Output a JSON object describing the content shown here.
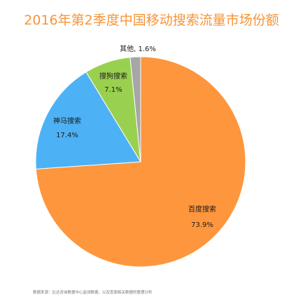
{
  "title": "2016年第2季度中国移动搜索流量市场份额",
  "source": "数据来源：比达咨询数据中心监测数据，以及查面相关数据的整理分析",
  "colors": {
    "title": "#f7943a",
    "baidu": "#fe963d",
    "shenma": "#4db1f6",
    "sougou": "#9ad04f",
    "other": "#a6a6a6"
  },
  "chart_data": {
    "type": "pie",
    "title": "2016年第2季度中国移动搜索流量市场份额",
    "unit": "%",
    "slices": [
      {
        "name": "百度搜索",
        "value": 73.9,
        "label": "73.9%",
        "color": "#fe963d"
      },
      {
        "name": "神马搜索",
        "value": 17.4,
        "label": "17.4%",
        "color": "#4db1f6"
      },
      {
        "name": "搜狗搜索",
        "value": 7.1,
        "label": "7.1%",
        "color": "#9ad04f"
      },
      {
        "name": "其他",
        "value": 1.6,
        "label": "其他, 1.6%",
        "color": "#a6a6a6"
      }
    ]
  }
}
